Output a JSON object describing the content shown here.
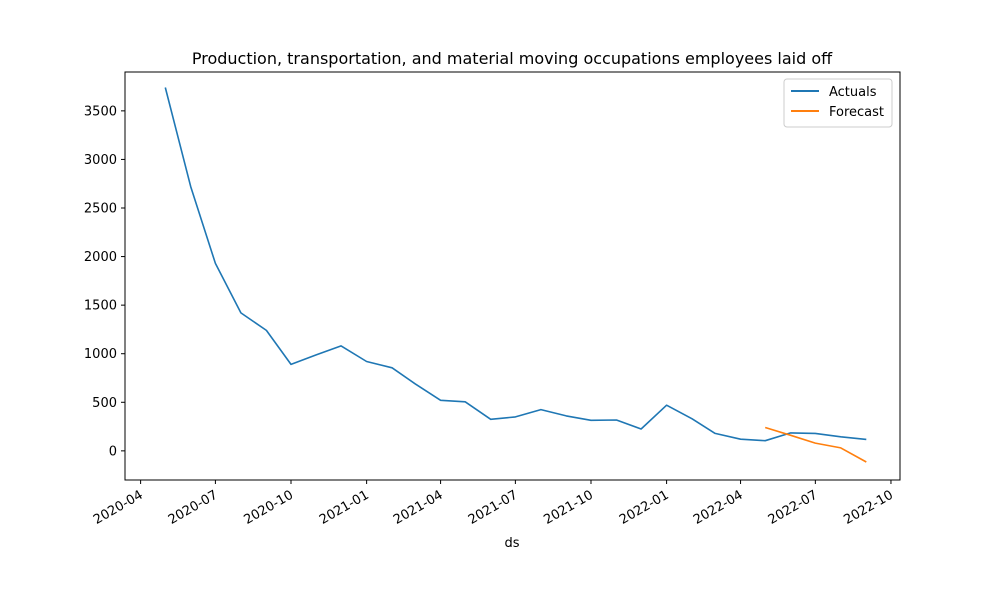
{
  "chart_data": {
    "type": "line",
    "title": "Production, transportation, and material moving occupations employees laid off",
    "xlabel": "ds",
    "ylabel": "",
    "x_range": [
      "2020-03-13",
      "2022-10-12"
    ],
    "ylim": [
      -300,
      3900
    ],
    "x_ticks": [
      "2020-04-01",
      "2020-07-01",
      "2020-10-01",
      "2021-01-01",
      "2021-04-01",
      "2021-07-01",
      "2021-10-01",
      "2022-01-01",
      "2022-04-01",
      "2022-07-01",
      "2022-10-01"
    ],
    "x_tick_labels": [
      "2020-04",
      "2020-07",
      "2020-10",
      "2021-01",
      "2021-04",
      "2021-07",
      "2021-10",
      "2022-01",
      "2022-04",
      "2022-07",
      "2022-10"
    ],
    "y_ticks": [
      0,
      500,
      1000,
      1500,
      2000,
      2500,
      3000,
      3500
    ],
    "y_tick_labels": [
      "0",
      "500",
      "1000",
      "1500",
      "2000",
      "2500",
      "3000",
      "3500"
    ],
    "grid": false,
    "legend_position": "top-right",
    "series": [
      {
        "name": "Actuals",
        "color": "#1f77b4",
        "points": [
          {
            "x": "2020-05-01",
            "y": 3740
          },
          {
            "x": "2020-06-01",
            "y": 2720
          },
          {
            "x": "2020-07-01",
            "y": 1930
          },
          {
            "x": "2020-08-01",
            "y": 1420
          },
          {
            "x": "2020-09-01",
            "y": 1240
          },
          {
            "x": "2020-10-01",
            "y": 890
          },
          {
            "x": "2020-11-01",
            "y": 990
          },
          {
            "x": "2020-12-01",
            "y": 1080
          },
          {
            "x": "2021-01-01",
            "y": 920
          },
          {
            "x": "2021-02-01",
            "y": 855
          },
          {
            "x": "2021-03-01",
            "y": 690
          },
          {
            "x": "2021-04-01",
            "y": 520
          },
          {
            "x": "2021-05-01",
            "y": 505
          },
          {
            "x": "2021-06-01",
            "y": 325
          },
          {
            "x": "2021-07-01",
            "y": 350
          },
          {
            "x": "2021-08-01",
            "y": 425
          },
          {
            "x": "2021-09-01",
            "y": 360
          },
          {
            "x": "2021-10-01",
            "y": 315
          },
          {
            "x": "2021-11-01",
            "y": 318
          },
          {
            "x": "2021-12-01",
            "y": 225
          },
          {
            "x": "2022-01-01",
            "y": 470
          },
          {
            "x": "2022-02-01",
            "y": 330
          },
          {
            "x": "2022-03-01",
            "y": 180
          },
          {
            "x": "2022-04-01",
            "y": 120
          },
          {
            "x": "2022-05-01",
            "y": 105
          },
          {
            "x": "2022-06-01",
            "y": 185
          },
          {
            "x": "2022-07-01",
            "y": 180
          },
          {
            "x": "2022-08-01",
            "y": 145
          },
          {
            "x": "2022-09-01",
            "y": 118
          }
        ]
      },
      {
        "name": "Forecast",
        "color": "#ff7f0e",
        "points": [
          {
            "x": "2022-05-01",
            "y": 240
          },
          {
            "x": "2022-06-01",
            "y": 160
          },
          {
            "x": "2022-07-01",
            "y": 80
          },
          {
            "x": "2022-08-01",
            "y": 30
          },
          {
            "x": "2022-09-01",
            "y": -115
          }
        ]
      }
    ]
  }
}
